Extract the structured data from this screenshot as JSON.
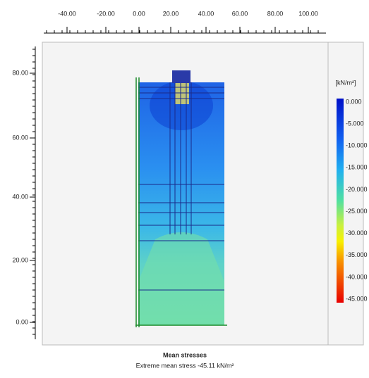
{
  "top_axis": {
    "labels": [
      "-40.00",
      "-20.00",
      "0.00",
      "20.00",
      "40.00",
      "60.00",
      "80.00",
      "100.00"
    ]
  },
  "left_axis": {
    "labels": [
      "80.00",
      "60.00",
      "40.00",
      "20.00",
      "0.00"
    ]
  },
  "legend": {
    "unit": "[kN/m²]",
    "labels": [
      "0.000",
      "-5.000",
      "-10.000",
      "-15.000",
      "-20.000",
      "-25.000",
      "-30.000",
      "-35.000",
      "-40.000",
      "-45.000"
    ]
  },
  "caption": {
    "title": "Mean stresses",
    "subtitle": "Extreme mean stress -45.11 kN/m²"
  }
}
